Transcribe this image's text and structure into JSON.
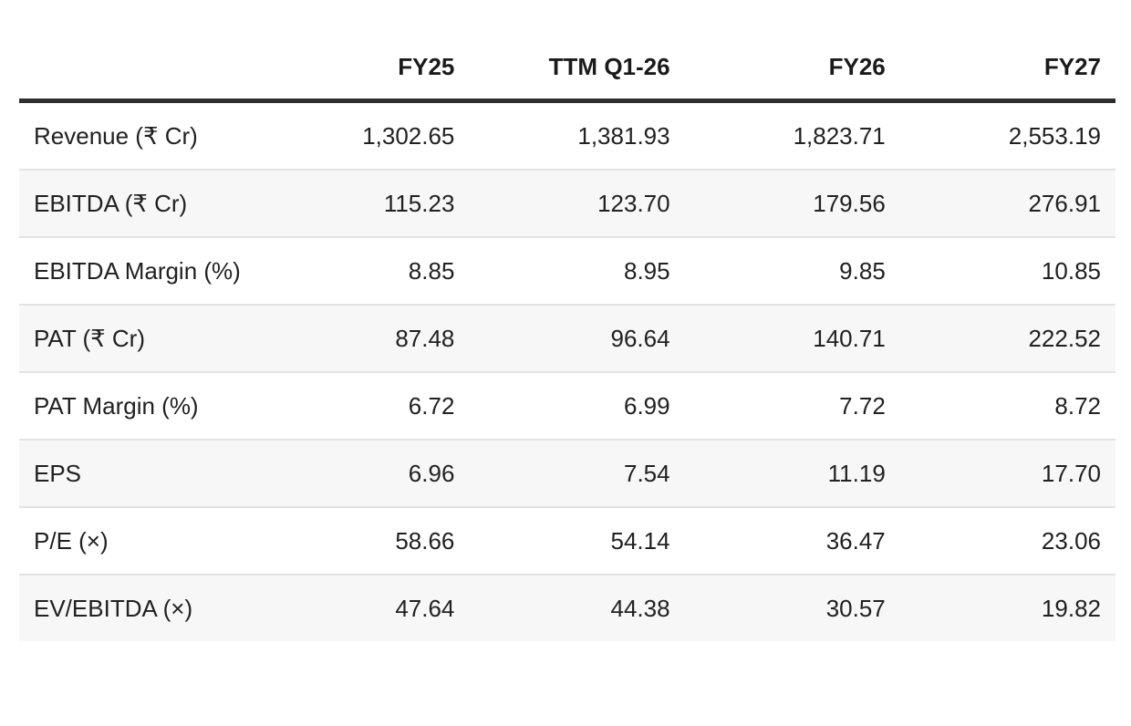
{
  "table": {
    "columns": [
      "",
      "FY25",
      "TTM Q1-26",
      "FY26",
      "FY27"
    ],
    "rows": [
      {
        "label": "Revenue (₹ Cr)",
        "values": [
          "1,302.65",
          "1,381.93",
          "1,823.71",
          "2,553.19"
        ]
      },
      {
        "label": "EBITDA (₹ Cr)",
        "values": [
          "115.23",
          "123.70",
          "179.56",
          "276.91"
        ]
      },
      {
        "label": "EBITDA Margin (%)",
        "values": [
          "8.85",
          "8.95",
          "9.85",
          "10.85"
        ]
      },
      {
        "label": "PAT (₹ Cr)",
        "values": [
          "87.48",
          "96.64",
          "140.71",
          "222.52"
        ]
      },
      {
        "label": "PAT Margin (%)",
        "values": [
          "6.72",
          "6.99",
          "7.72",
          "8.72"
        ]
      },
      {
        "label": "EPS",
        "values": [
          "6.96",
          "7.54",
          "11.19",
          "17.70"
        ]
      },
      {
        "label": "P/E (×)",
        "values": [
          "58.66",
          "54.14",
          "36.47",
          "23.06"
        ]
      },
      {
        "label": "EV/EBITDA (×)",
        "values": [
          "47.64",
          "44.38",
          "30.57",
          "19.82"
        ]
      }
    ]
  },
  "colors": {
    "background": "#ffffff",
    "zebra_stripe": "#f7f7f7",
    "row_separator": "#e3e3e3",
    "header_rule": "#2e2e2e",
    "text": "#212121"
  },
  "chart_data": {
    "type": "table",
    "title": "Financial estimates table",
    "columns": [
      "FY25",
      "TTM Q1-26",
      "FY26",
      "FY27"
    ],
    "rows": [
      {
        "metric": "Revenue (₹ Cr)",
        "values": [
          1302.65,
          1381.93,
          1823.71,
          2553.19
        ]
      },
      {
        "metric": "EBITDA (₹ Cr)",
        "values": [
          115.23,
          123.7,
          179.56,
          276.91
        ]
      },
      {
        "metric": "EBITDA Margin (%)",
        "values": [
          8.85,
          8.95,
          9.85,
          10.85
        ]
      },
      {
        "metric": "PAT (₹ Cr)",
        "values": [
          87.48,
          96.64,
          140.71,
          222.52
        ]
      },
      {
        "metric": "PAT Margin (%)",
        "values": [
          6.72,
          6.99,
          7.72,
          8.72
        ]
      },
      {
        "metric": "EPS",
        "values": [
          6.96,
          7.54,
          11.19,
          17.7
        ]
      },
      {
        "metric": "P/E (×)",
        "values": [
          58.66,
          54.14,
          36.47,
          23.06
        ]
      },
      {
        "metric": "EV/EBITDA (×)",
        "values": [
          47.64,
          44.38,
          30.57,
          19.82
        ]
      }
    ]
  }
}
